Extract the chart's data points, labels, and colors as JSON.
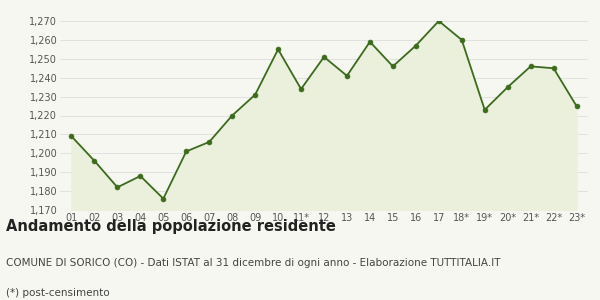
{
  "labels": [
    "01",
    "02",
    "03",
    "04",
    "05",
    "06",
    "07",
    "08",
    "09",
    "10",
    "11*",
    "12",
    "13",
    "14",
    "15",
    "16",
    "17",
    "18*",
    "19*",
    "20*",
    "21*",
    "22*",
    "23*"
  ],
  "values": [
    1209,
    1196,
    1182,
    1188,
    1176,
    1201,
    1206,
    1220,
    1231,
    1255,
    1234,
    1251,
    1241,
    1259,
    1246,
    1257,
    1270,
    1260,
    1223,
    1235,
    1246,
    1245,
    1225
  ],
  "ylim": [
    1170,
    1270
  ],
  "yticks": [
    1170,
    1180,
    1190,
    1200,
    1210,
    1220,
    1230,
    1240,
    1250,
    1260,
    1270
  ],
  "line_color": "#3d6b1e",
  "fill_color": "#eaf0dc",
  "marker_color": "#3d6b1e",
  "bg_color": "#f7f7f2",
  "grid_color": "#d8d8d8",
  "title": "Andamento della popolazione residente",
  "subtitle": "COMUNE DI SORICO (CO) - Dati ISTAT al 31 dicembre di ogni anno - Elaborazione TUTTITALIA.IT",
  "footnote": "(*) post-censimento",
  "title_fontsize": 10.5,
  "subtitle_fontsize": 7.5,
  "footnote_fontsize": 7.5
}
